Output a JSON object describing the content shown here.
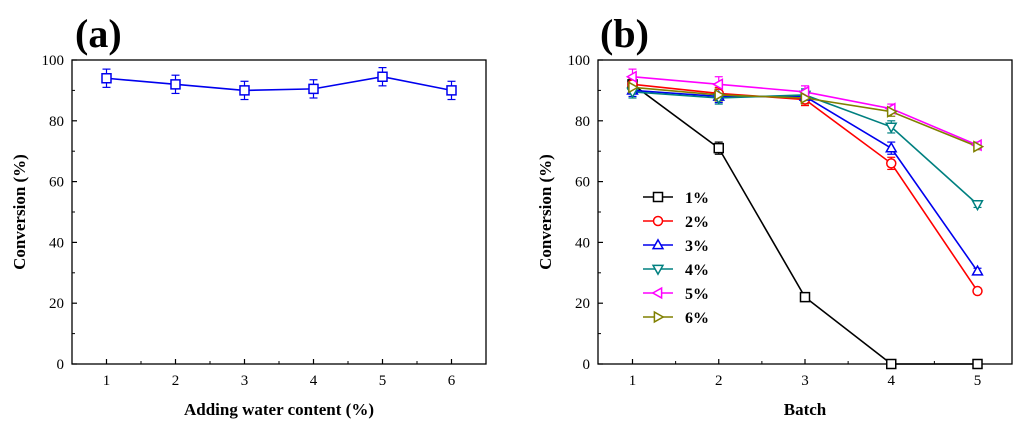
{
  "colors": {
    "axis": "#000000",
    "blue": "#0000ee",
    "black": "#000000",
    "red": "#ff0000",
    "teal": "#008080",
    "magenta": "#ff00ff",
    "olive": "#808000"
  },
  "chart_data": [
    {
      "panel_label": "(a)",
      "type": "line",
      "xlabel": "Adding water content (%)",
      "ylabel": "Conversion (%)",
      "xlim": [
        0.5,
        6.5
      ],
      "ylim": [
        0,
        100
      ],
      "xticks": [
        "1",
        "2",
        "3",
        "4",
        "5",
        "6"
      ],
      "yticks": [
        "0",
        "20",
        "40",
        "60",
        "80",
        "100"
      ],
      "legend": "none",
      "series": [
        {
          "color": "#0000ee",
          "marker": "square",
          "x": [
            1,
            2,
            3,
            4,
            5,
            6
          ],
          "y": [
            94,
            92,
            90,
            90.5,
            94.5,
            90
          ],
          "error": [
            3,
            3,
            3,
            3,
            3,
            3
          ]
        }
      ]
    },
    {
      "panel_label": "(b)",
      "type": "line",
      "xlabel": "Batch",
      "ylabel": "Conversion (%)",
      "xlim": [
        0.6,
        5.4
      ],
      "ylim": [
        0,
        100
      ],
      "xticks": [
        "1",
        "2",
        "3",
        "4",
        "5"
      ],
      "yticks": [
        "0",
        "20",
        "40",
        "60",
        "80",
        "100"
      ],
      "legend": "left-center",
      "series": [
        {
          "name": "1%",
          "color": "#000000",
          "marker": "square",
          "x": [
            1,
            2,
            3,
            4,
            5
          ],
          "y": [
            92,
            71,
            22,
            0,
            0
          ],
          "error": [
            2,
            2,
            1,
            0.5,
            0.5
          ]
        },
        {
          "name": "2%",
          "color": "#ff0000",
          "marker": "circle",
          "x": [
            1,
            2,
            3,
            4,
            5
          ],
          "y": [
            92,
            89,
            87,
            66,
            24
          ],
          "error": [
            2,
            2,
            2,
            2,
            1
          ]
        },
        {
          "name": "3%",
          "color": "#0000ee",
          "marker": "triangle-up",
          "x": [
            1,
            2,
            3,
            4,
            5
          ],
          "y": [
            90,
            88,
            88,
            71,
            30.5
          ],
          "error": [
            2,
            2,
            2,
            2,
            1
          ]
        },
        {
          "name": "4%",
          "color": "#008080",
          "marker": "triangle-down",
          "x": [
            1,
            2,
            3,
            4,
            5
          ],
          "y": [
            89.5,
            87.5,
            88.5,
            78,
            52.5
          ],
          "error": [
            2,
            2,
            2,
            2,
            1
          ]
        },
        {
          "name": "5%",
          "color": "#ff00ff",
          "marker": "triangle-left",
          "x": [
            1,
            2,
            3,
            4,
            5
          ],
          "y": [
            94.5,
            92,
            89.5,
            84,
            72
          ],
          "error": [
            2.5,
            2.5,
            2,
            1.5,
            1
          ]
        },
        {
          "name": "6%",
          "color": "#808000",
          "marker": "triangle-right",
          "x": [
            1,
            2,
            3,
            4,
            5
          ],
          "y": [
            91,
            88.5,
            87.5,
            83,
            71.5
          ],
          "error": [
            2,
            2,
            2,
            1.5,
            1
          ]
        }
      ]
    }
  ]
}
